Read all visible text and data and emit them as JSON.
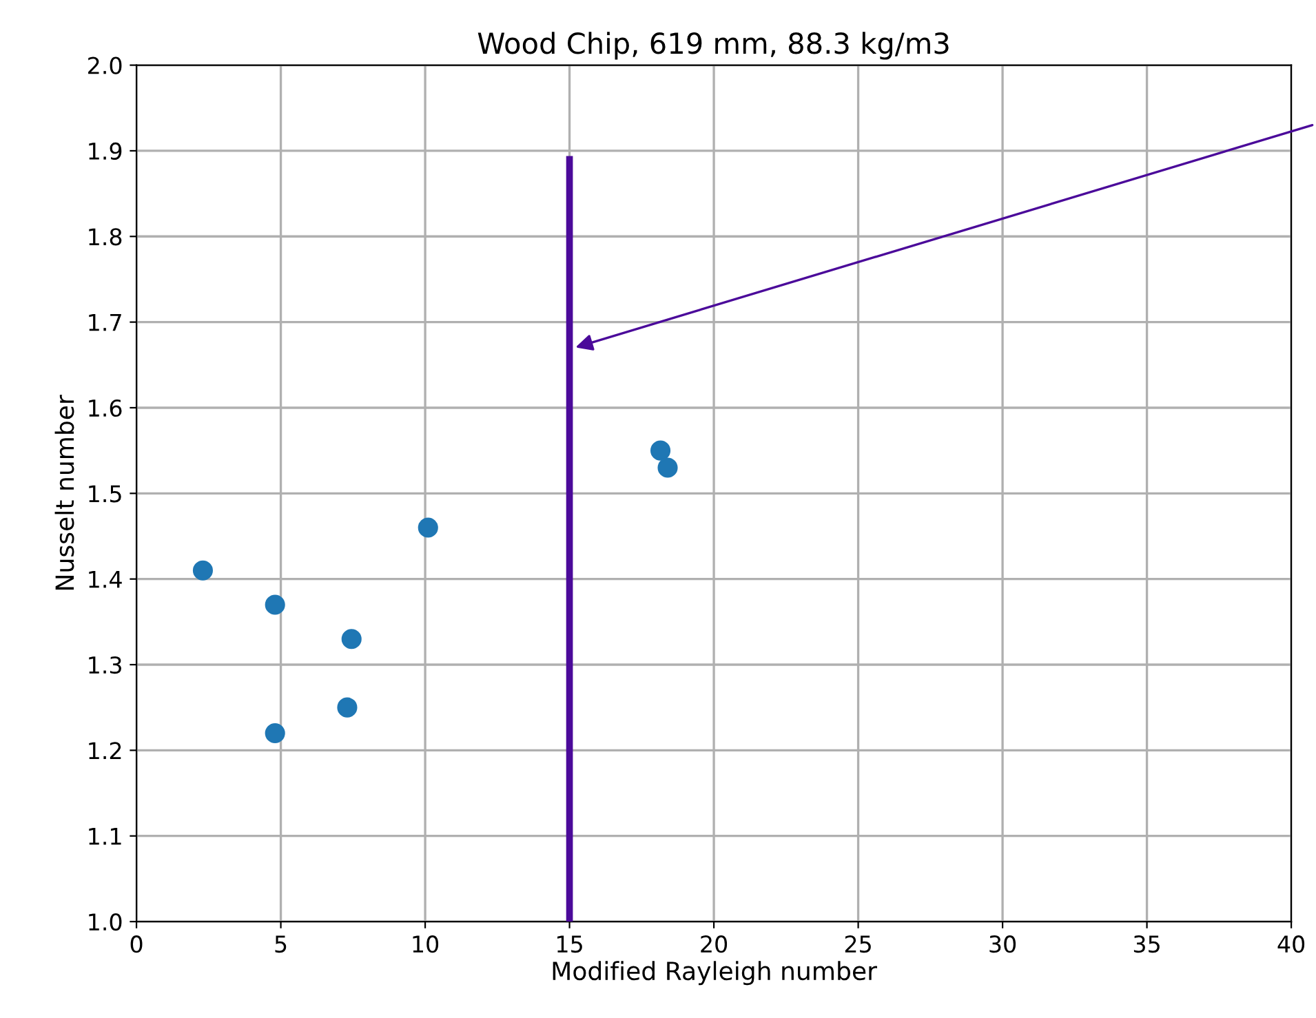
{
  "chart_data": {
    "type": "scatter",
    "title": "Wood Chip, 619 mm, 88.3 kg/m3",
    "xlabel": "Modified Rayleigh number",
    "ylabel": "Nusselt number",
    "series": [
      {
        "type": "scatter",
        "marker": "circle",
        "color": "#1f77b4",
        "x": [
          2.3,
          4.8,
          4.8,
          7.3,
          7.45,
          10.1,
          18.15,
          18.4
        ],
        "values": [
          1.41,
          1.37,
          1.22,
          1.25,
          1.33,
          1.46,
          1.55,
          1.53
        ]
      },
      {
        "type": "line",
        "color": "#4b0a9a",
        "x": [
          15,
          15
        ],
        "values": [
          1.0,
          1.89
        ]
      }
    ],
    "grid": true,
    "xlim": [
      0,
      40
    ],
    "xticks": [
      0,
      5,
      10,
      15,
      20,
      25,
      30,
      35,
      40
    ],
    "ylim": [
      1.0,
      2.0
    ],
    "yticks": [
      {
        "value": 1.0,
        "label": "1.0"
      },
      {
        "value": 1.1,
        "label": "1.1"
      },
      {
        "value": 1.2,
        "label": "1.2"
      },
      {
        "value": 1.3,
        "label": "1.3"
      },
      {
        "value": 1.4,
        "label": "1.4"
      },
      {
        "value": 1.5,
        "label": "1.5"
      },
      {
        "value": 1.6,
        "label": "1.6"
      },
      {
        "value": 1.7,
        "label": "1.7"
      },
      {
        "value": 1.8,
        "label": "1.8"
      },
      {
        "value": 1.9,
        "label": "1.9"
      },
      {
        "value": 2.0,
        "label": "2.0"
      }
    ]
  }
}
